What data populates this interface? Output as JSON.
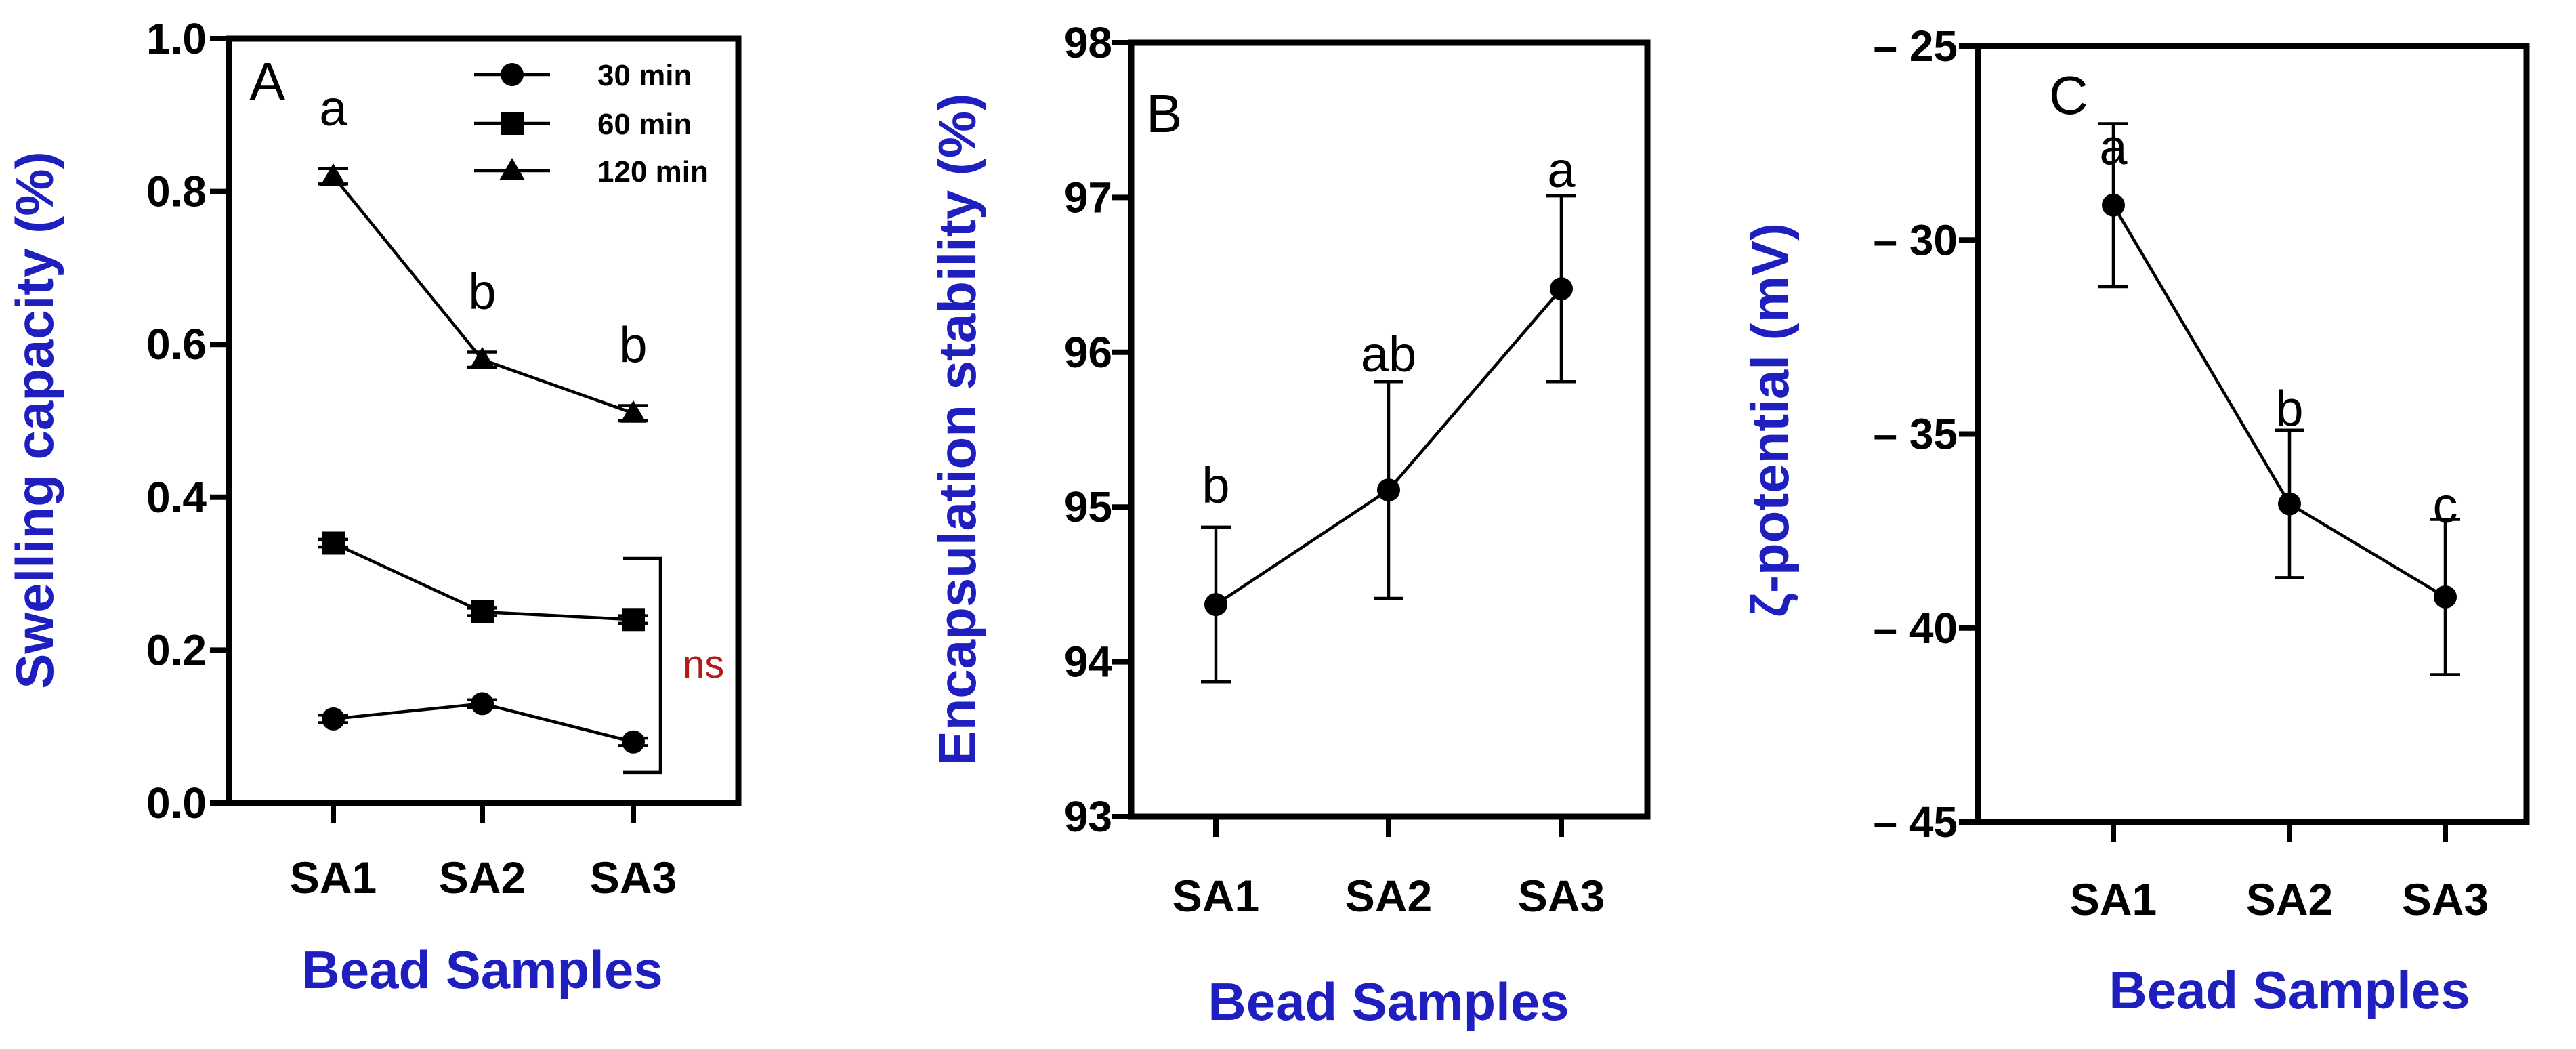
{
  "colors": {
    "axis_label": "#1f1fbf",
    "ns": "#b31b1b",
    "ink": "#000000"
  },
  "chart_data": [
    {
      "type": "line",
      "panel": "A",
      "ylabel": "Swelling capacity (%)",
      "xlabel": "Bead Samples",
      "categories": [
        "SA1",
        "SA2",
        "SA3"
      ],
      "ylim": [
        0,
        1.0
      ],
      "yticks": [
        0.0,
        0.2,
        0.4,
        0.6,
        0.8,
        1.0
      ],
      "ytick_labels": [
        "0.0",
        "0.2",
        "0.4",
        "0.6",
        "0.8",
        "1.0"
      ],
      "series": [
        {
          "name": "30 min",
          "marker": "circle",
          "values": [
            0.11,
            0.13,
            0.08
          ],
          "errors": [
            0.005,
            0.005,
            0.005
          ]
        },
        {
          "name": "60 min",
          "marker": "square",
          "values": [
            0.34,
            0.25,
            0.24
          ],
          "errors": [
            0.005,
            0.005,
            0.005
          ]
        },
        {
          "name": "120 min",
          "marker": "triangle",
          "values": [
            0.82,
            0.58,
            0.51
          ],
          "errors": [
            0.01,
            0.01,
            0.01
          ],
          "letters": [
            "a",
            "b",
            "b"
          ]
        }
      ],
      "annotation": "ns",
      "legend_position": "top-right"
    },
    {
      "type": "line",
      "panel": "B",
      "ylabel": "Encapsulation stability (%)",
      "xlabel": "Bead Samples",
      "categories": [
        "SA1",
        "SA2",
        "SA3"
      ],
      "ylim": [
        93,
        98
      ],
      "yticks": [
        93,
        94,
        95,
        96,
        97,
        98
      ],
      "ytick_labels": [
        "93",
        "94",
        "95",
        "96",
        "97",
        "98"
      ],
      "series": [
        {
          "marker": "circle",
          "values": [
            94.37,
            95.11,
            96.41
          ],
          "errors": [
            0.5,
            0.7,
            0.6
          ],
          "letters": [
            "b",
            "ab",
            "a"
          ]
        }
      ]
    },
    {
      "type": "line",
      "panel": "C",
      "ylabel": "ζ-potential (mV)",
      "xlabel": "Bead Samples",
      "categories": [
        "SA1",
        "SA2",
        "SA3"
      ],
      "ylim": [
        -45,
        -25
      ],
      "yticks": [
        -25,
        -30,
        -35,
        -40,
        -45
      ],
      "ytick_labels": [
        "– 25",
        "– 30",
        "– 35",
        "– 40",
        "– 45"
      ],
      "series": [
        {
          "marker": "circle",
          "values": [
            -29.1,
            -36.8,
            -39.2
          ],
          "errors": [
            2.1,
            1.9,
            2.0
          ],
          "letters": [
            "a",
            "b",
            "c"
          ]
        }
      ]
    }
  ]
}
